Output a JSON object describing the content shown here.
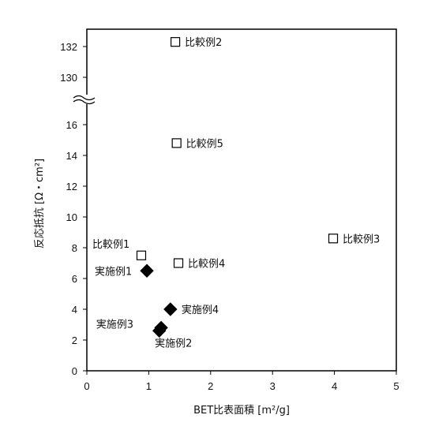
{
  "chart_data": {
    "type": "scatter",
    "xlabel": "BET比表面積 [m²/g]",
    "ylabel": "反応抵抗 [Ω・cm²]",
    "xlim": [
      0,
      5
    ],
    "x_ticks": [
      "0",
      "1",
      "2",
      "3",
      "4",
      "5"
    ],
    "y_ticks_lower": [
      "0",
      "2",
      "4",
      "6",
      "8",
      "10",
      "12",
      "14",
      "16"
    ],
    "y_ticks_upper": [
      "130",
      "132"
    ],
    "y_axis_break": "between 17 and 129",
    "grid": false,
    "series": [
      {
        "marker": "open-square",
        "points": [
          {
            "label": "比較例1",
            "x": 0.88,
            "y": 7.5
          },
          {
            "label": "比較例2",
            "x": 1.43,
            "y": 132.3
          },
          {
            "label": "比較例3",
            "x": 3.98,
            "y": 8.6
          },
          {
            "label": "比較例4",
            "x": 1.48,
            "y": 7.0
          },
          {
            "label": "比較例5",
            "x": 1.45,
            "y": 14.8
          }
        ]
      },
      {
        "marker": "filled-diamond",
        "points": [
          {
            "label": "実施例1",
            "x": 0.97,
            "y": 6.5
          },
          {
            "label": "実施例2",
            "x": 1.2,
            "y": 2.8
          },
          {
            "label": "実施例3",
            "x": 1.17,
            "y": 2.6
          },
          {
            "label": "実施例4",
            "x": 1.35,
            "y": 4.0
          }
        ]
      }
    ]
  }
}
